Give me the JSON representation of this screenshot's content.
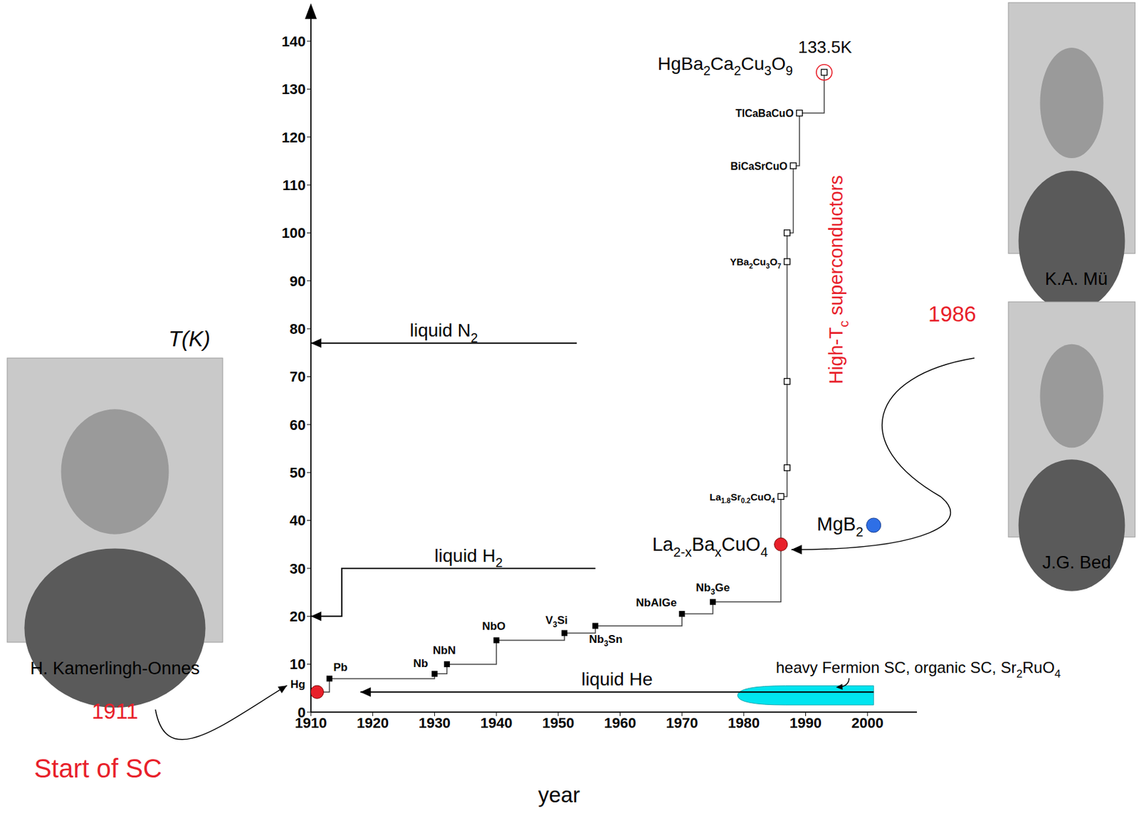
{
  "chart_data": {
    "type": "line",
    "x_label": "year",
    "y_label": "T(K)",
    "xlim": [
      1910,
      2008
    ],
    "xticks": [
      1910,
      1920,
      1930,
      1940,
      1950,
      1960,
      1970,
      1980,
      1990,
      2000
    ],
    "ylim": [
      0,
      146
    ],
    "yticks": [
      0,
      10,
      20,
      30,
      40,
      50,
      60,
      70,
      80,
      90,
      100,
      110,
      120,
      130,
      140
    ],
    "grid": false,
    "series": [
      {
        "type": "line",
        "line_style": "step",
        "color": "#444444",
        "x": [
          1911,
          1913,
          1930,
          1932,
          1940,
          1951,
          1956,
          1970,
          1975,
          1986,
          1986,
          1987,
          1987,
          1987,
          1987,
          1988,
          1989,
          1993
        ],
        "values": [
          4.2,
          7,
          8,
          10,
          15,
          16.5,
          18,
          20.5,
          23,
          35,
          45,
          51,
          69,
          94,
          100,
          114,
          125,
          133.5
        ],
        "labels": [
          "Hg",
          "Pb",
          "Nb",
          "NbN",
          "NbO",
          "V3Si",
          "Nb3Sn",
          "NbAlGe",
          "Nb3Ge",
          "La2-xBaxCuO4",
          "La1.8Sr0.2CuO4",
          null,
          null,
          "YBa2Cu3O7",
          null,
          "BiCaSrCuO",
          "TlCaBaCuO",
          "HgBa2Ca2Cu3O9"
        ],
        "value_labels": [
          null,
          null,
          null,
          null,
          null,
          null,
          null,
          null,
          null,
          null,
          null,
          null,
          null,
          null,
          null,
          null,
          null,
          "133.5K"
        ],
        "marker": [
          "circle",
          "filled_square",
          "filled_square",
          "filled_square",
          "filled_square",
          "filled_square",
          "filled_square",
          "filled_square",
          "filled_square",
          "circle",
          "open_square",
          "open_square",
          "open_square",
          "open_square",
          "open_square",
          "open_square",
          "open_square",
          "ringed_open_square"
        ],
        "colors": [
          "#e8202a",
          "#000000",
          "#000000",
          "#000000",
          "#000000",
          "#000000",
          "#000000",
          "#000000",
          "#000000",
          "#e8202a",
          "#000000",
          "#000000",
          "#000000",
          "#000000",
          "#000000",
          "#000000",
          "#000000",
          "#e8202a"
        ]
      },
      {
        "type": "scatter",
        "marker": "circle",
        "color": "#2e6fe6",
        "x": [
          2001
        ],
        "values": [
          39
        ],
        "labels": [
          "MgB2"
        ]
      }
    ],
    "reference_lines": [
      {
        "label": "liquid N2",
        "x": [
          1953,
          1910
        ],
        "values": [
          77,
          77
        ]
      },
      {
        "label": "liquid H2",
        "x": [
          1956,
          1915,
          1915,
          1910
        ],
        "values": [
          30,
          30,
          20,
          20
        ]
      },
      {
        "label": "liquid He",
        "x": [
          2001,
          1918
        ],
        "values": [
          4.2,
          4.2
        ]
      }
    ],
    "region": {
      "label": "heavy Fermion SC, organic SC, Sr2RuO4",
      "x": [
        1979,
        2001
      ],
      "values": [
        1.5,
        5.5
      ],
      "color": "#00e5f0"
    },
    "annotations": [
      {
        "text": "1911",
        "color": "#e8202a"
      },
      {
        "text": "Start of SC",
        "color": "#e8202a"
      },
      {
        "text": "1986",
        "color": "#e8202a"
      },
      {
        "text": "High-Tc superconductors",
        "color": "#e8202a"
      }
    ],
    "photos": [
      {
        "caption": "H. Kamerlingh-Onnes"
      },
      {
        "caption": "K.A. Mü"
      },
      {
        "caption": "J.G. Bed"
      }
    ]
  }
}
